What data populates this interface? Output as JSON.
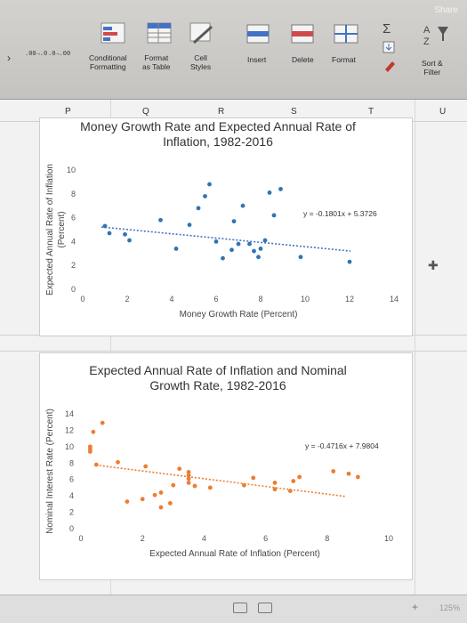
{
  "ribbon": {
    "share": "Share",
    "conditional": [
      "Conditional",
      "Formatting"
    ],
    "format_table": [
      "Format",
      "as Table"
    ],
    "cell_styles": [
      "Cell",
      "Styles"
    ],
    "insert": "Insert",
    "delete": "Delete",
    "format": "Format",
    "sort_filter": [
      "Sort &",
      "Filter"
    ],
    "dec_buttons": [
      ".00→.0",
      ".0→.00"
    ]
  },
  "sheet": {
    "columns": [
      "P",
      "Q",
      "R",
      "S",
      "T",
      "U"
    ],
    "zoom": "125%"
  },
  "chart_data": [
    {
      "type": "scatter",
      "title": "Money Growth Rate and Expected Annual Rate of Inflation, 1982-2016",
      "title_lines": [
        "Money Growth Rate and Expected Annual Rate of",
        "Inflation, 1982-2016"
      ],
      "xlabel": "Money Growth Rate (Percent)",
      "ylabel_lines": [
        "Expected Annual Rate of Inflation",
        "(Percent)"
      ],
      "xlim": [
        0,
        14
      ],
      "ylim": [
        0,
        10
      ],
      "xticks": [
        0,
        2,
        4,
        6,
        8,
        10,
        12,
        14
      ],
      "yticks": [
        0,
        2,
        4,
        6,
        8,
        10
      ],
      "marker_color": "#2e75b6",
      "trendline": {
        "slope": -0.1801,
        "intercept": 5.3726,
        "label": "y = -0.1801x + 5.3726",
        "color": "#4472c4"
      },
      "points": [
        [
          1.0,
          5.3
        ],
        [
          1.2,
          4.7
        ],
        [
          1.9,
          4.6
        ],
        [
          2.1,
          4.1
        ],
        [
          3.5,
          5.8
        ],
        [
          4.2,
          3.4
        ],
        [
          4.8,
          5.4
        ],
        [
          5.2,
          6.8
        ],
        [
          5.5,
          7.8
        ],
        [
          5.7,
          8.8
        ],
        [
          6.0,
          4.0
        ],
        [
          6.3,
          2.6
        ],
        [
          6.7,
          3.3
        ],
        [
          6.8,
          5.7
        ],
        [
          7.0,
          3.8
        ],
        [
          7.2,
          7.0
        ],
        [
          7.5,
          3.8
        ],
        [
          7.7,
          3.2
        ],
        [
          7.9,
          2.7
        ],
        [
          8.0,
          3.4
        ],
        [
          8.2,
          4.1
        ],
        [
          8.4,
          8.1
        ],
        [
          8.6,
          6.2
        ],
        [
          8.9,
          8.4
        ],
        [
          9.8,
          2.7
        ],
        [
          12.0,
          2.3
        ]
      ]
    },
    {
      "type": "scatter",
      "title": "Expected Annual Rate of Inflation and Nominal Growth Rate, 1982-2016",
      "title_lines": [
        "Expected Annual Rate of Inflation and Nominal",
        "Growth Rate, 1982-2016"
      ],
      "xlabel": "Expected Annual Rate of Inflation (Percent)",
      "ylabel_lines": [
        "Nominal Interest Rate (Percent)"
      ],
      "xlim": [
        0,
        10
      ],
      "ylim": [
        0,
        14
      ],
      "xticks": [
        0,
        2,
        4,
        6,
        8,
        10
      ],
      "yticks": [
        0,
        2,
        4,
        6,
        8,
        10,
        12,
        14
      ],
      "marker_color": "#ed7d31",
      "trendline": {
        "slope": -0.4716,
        "intercept": 7.9804,
        "label": "y = -0.4716x + 7.9804",
        "color": "#ed7d31"
      },
      "points": [
        [
          0.3,
          10.0
        ],
        [
          0.3,
          9.7
        ],
        [
          0.3,
          9.4
        ],
        [
          0.4,
          11.8
        ],
        [
          0.5,
          7.8
        ],
        [
          0.7,
          12.9
        ],
        [
          1.2,
          8.1
        ],
        [
          1.5,
          3.3
        ],
        [
          2.0,
          3.6
        ],
        [
          2.1,
          7.6
        ],
        [
          2.4,
          4.1
        ],
        [
          2.6,
          4.4
        ],
        [
          2.6,
          2.6
        ],
        [
          2.9,
          3.1
        ],
        [
          3.0,
          5.3
        ],
        [
          3.2,
          7.3
        ],
        [
          3.5,
          6.1
        ],
        [
          3.5,
          6.5
        ],
        [
          3.5,
          5.6
        ],
        [
          3.5,
          6.9
        ],
        [
          3.7,
          5.2
        ],
        [
          4.2,
          5.0
        ],
        [
          5.3,
          5.3
        ],
        [
          5.6,
          6.2
        ],
        [
          6.3,
          5.6
        ],
        [
          6.3,
          4.8
        ],
        [
          6.8,
          4.6
        ],
        [
          6.9,
          5.8
        ],
        [
          7.1,
          6.3
        ],
        [
          8.2,
          7.0
        ],
        [
          8.7,
          6.7
        ],
        [
          9.0,
          6.3
        ]
      ]
    }
  ]
}
